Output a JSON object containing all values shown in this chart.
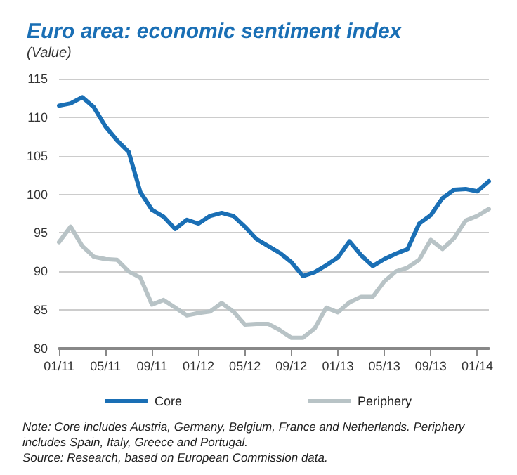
{
  "chart_data": {
    "type": "line",
    "title": "Euro area: economic sentiment index",
    "subtitle": "(Value)",
    "categories": [
      "01/11",
      null,
      null,
      null,
      "05/11",
      null,
      null,
      null,
      "09/11",
      null,
      null,
      null,
      "01/12",
      null,
      null,
      null,
      "05/12",
      null,
      null,
      null,
      "09/12",
      null,
      null,
      null,
      "01/13",
      null,
      null,
      null,
      "05/13",
      null,
      null,
      null,
      "09/13",
      null,
      null,
      null,
      "01/14",
      null
    ],
    "series": [
      {
        "name": "Core",
        "color": "#1a6fb5",
        "values": [
          111.5,
          111.8,
          112.6,
          111.3,
          108.8,
          107.0,
          105.5,
          100.3,
          98.0,
          97.1,
          95.5,
          96.7,
          96.2,
          97.2,
          97.6,
          97.2,
          95.8,
          94.2,
          93.3,
          92.4,
          91.2,
          89.4,
          89.9,
          90.8,
          91.8,
          93.9,
          92.1,
          90.7,
          91.6,
          92.3,
          92.9,
          96.2,
          97.3,
          99.5,
          100.6,
          100.7,
          100.4,
          101.7
        ]
      },
      {
        "name": "Periphery",
        "color": "#b8c3c6",
        "values": [
          93.8,
          95.8,
          93.3,
          91.9,
          91.6,
          91.5,
          90.0,
          89.2,
          85.7,
          86.3,
          85.3,
          84.3,
          84.6,
          84.8,
          85.9,
          84.8,
          83.1,
          83.2,
          83.2,
          82.4,
          81.4,
          81.4,
          82.6,
          85.3,
          84.7,
          86.0,
          86.7,
          86.7,
          88.7,
          90.0,
          90.5,
          91.5,
          94.1,
          92.9,
          94.3,
          96.6,
          97.2,
          98.1
        ]
      }
    ],
    "ylim": [
      80,
      115
    ],
    "yticks": [
      80,
      85,
      90,
      95,
      100,
      105,
      110,
      115
    ],
    "grid": "y",
    "legend": "bottom",
    "marker": "none",
    "line_style": "solid",
    "annotations": [
      "Note: Core includes Austria, Germany, Belgium, France and Netherlands. Periphery includes Spain, Italy, Greece and Portugal.",
      "Source: Research, based on European Commission data."
    ]
  }
}
